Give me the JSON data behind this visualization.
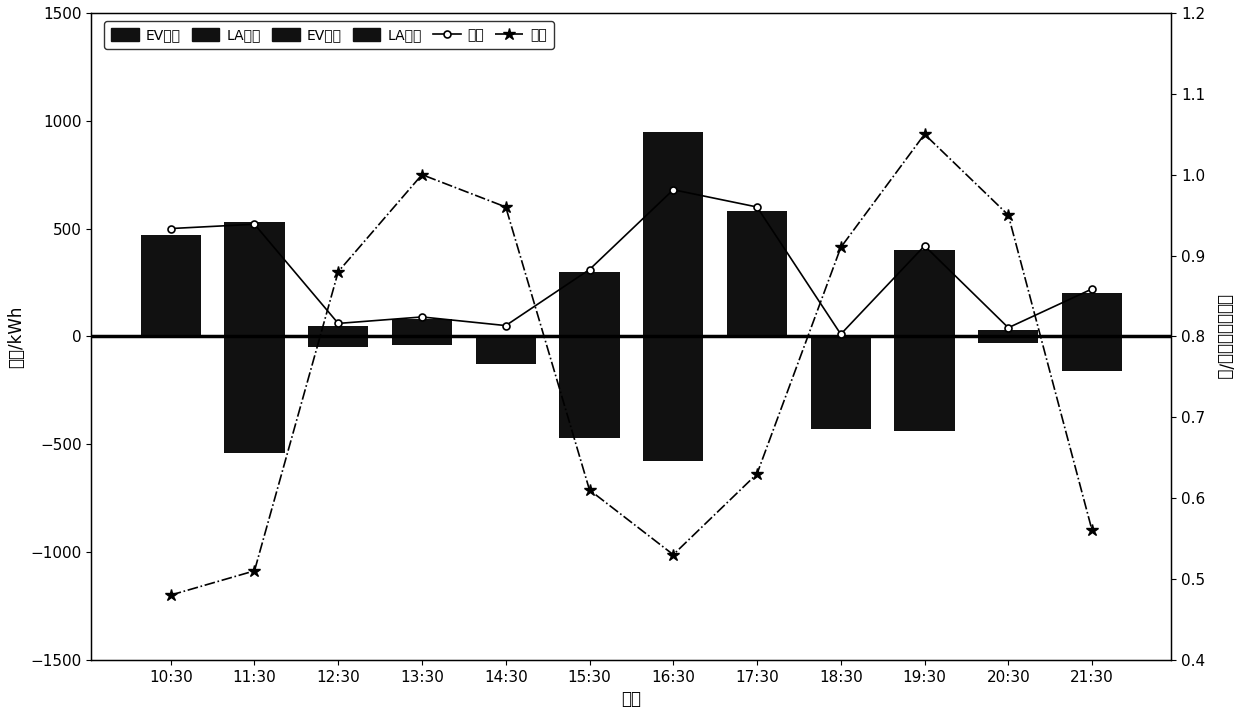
{
  "time_labels": [
    "10:30",
    "11:30",
    "12:30",
    "13:30",
    "14:30",
    "15:30",
    "16:30",
    "17:30",
    "18:30",
    "19:30",
    "20:30",
    "21:30"
  ],
  "bar_top": [
    470,
    530,
    50,
    80,
    -130,
    300,
    950,
    580,
    0,
    400,
    30,
    200
  ],
  "bar_bot": [
    0,
    -540,
    -50,
    -40,
    0,
    -470,
    -580,
    0,
    -430,
    -440,
    -30,
    -160
  ],
  "load_line": [
    0,
    0,
    0,
    0,
    0,
    0,
    0,
    0,
    0,
    0,
    0,
    0
  ],
  "load_y": [
    500,
    520,
    60,
    90,
    50,
    310,
    680,
    600,
    10,
    420,
    40,
    220
  ],
  "price_line": [
    0.48,
    0.51,
    0.88,
    1.0,
    0.96,
    0.61,
    0.53,
    0.63,
    0.91,
    1.05,
    0.95,
    0.56
  ],
  "bar_color": "#111111",
  "ylabel_left": "电量/kWh",
  "ylabel_right": "聚合商购电电价/元",
  "xlabel": "时间",
  "ylim_left": [
    -1500,
    1500
  ],
  "ylim_right": [
    0.4,
    1.2
  ],
  "yticks_left": [
    -1500,
    -1000,
    -500,
    0,
    500,
    1000,
    1500
  ],
  "yticks_right": [
    0.4,
    0.5,
    0.6,
    0.7,
    0.8,
    0.9,
    1.0,
    1.1,
    1.2
  ],
  "legend_labels": [
    "EV充电",
    "LA储电",
    "EV放电",
    "LA购电",
    "负荷",
    "电价"
  ],
  "background_color": "#ffffff",
  "bar_width": 0.72
}
